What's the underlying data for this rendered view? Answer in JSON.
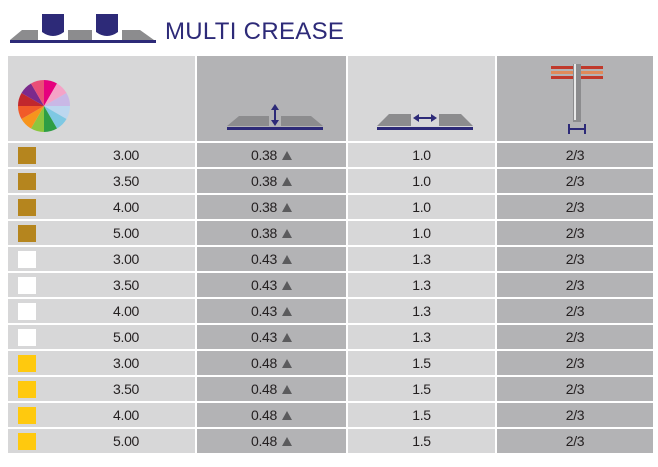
{
  "header": {
    "title": "MULTI CREASE",
    "logo_icon": "crease-rule-logo-icon"
  },
  "columns": [
    {
      "icon": "color-wheel-icon"
    },
    {
      "icon": "crease-height-icon"
    },
    {
      "icon": "crease-width-icon"
    },
    {
      "icon": "rule-thickness-icon"
    }
  ],
  "colors": {
    "brand_navy": "#2d2a78",
    "swatch_bronze": "#b5851e",
    "swatch_white": "#ffffff",
    "swatch_yellow": "#ffc90e",
    "cell_light": "#d7d7d8",
    "cell_dark": "#b3b3b5"
  },
  "rows": [
    {
      "swatch": "bronze",
      "size": "3.00",
      "height": "0.38",
      "width": "1.0",
      "point": "2/3"
    },
    {
      "swatch": "bronze",
      "size": "3.50",
      "height": "0.38",
      "width": "1.0",
      "point": "2/3"
    },
    {
      "swatch": "bronze",
      "size": "4.00",
      "height": "0.38",
      "width": "1.0",
      "point": "2/3"
    },
    {
      "swatch": "bronze",
      "size": "5.00",
      "height": "0.38",
      "width": "1.0",
      "point": "2/3"
    },
    {
      "swatch": "white",
      "size": "3.00",
      "height": "0.43",
      "width": "1.3",
      "point": "2/3"
    },
    {
      "swatch": "white",
      "size": "3.50",
      "height": "0.43",
      "width": "1.3",
      "point": "2/3"
    },
    {
      "swatch": "white",
      "size": "4.00",
      "height": "0.43",
      "width": "1.3",
      "point": "2/3"
    },
    {
      "swatch": "white",
      "size": "5.00",
      "height": "0.43",
      "width": "1.3",
      "point": "2/3"
    },
    {
      "swatch": "yellow",
      "size": "3.00",
      "height": "0.48",
      "width": "1.5",
      "point": "2/3"
    },
    {
      "swatch": "yellow",
      "size": "3.50",
      "height": "0.48",
      "width": "1.5",
      "point": "2/3"
    },
    {
      "swatch": "yellow",
      "size": "4.00",
      "height": "0.48",
      "width": "1.5",
      "point": "2/3"
    },
    {
      "swatch": "yellow",
      "size": "5.00",
      "height": "0.48",
      "width": "1.5",
      "point": "2/3"
    }
  ]
}
